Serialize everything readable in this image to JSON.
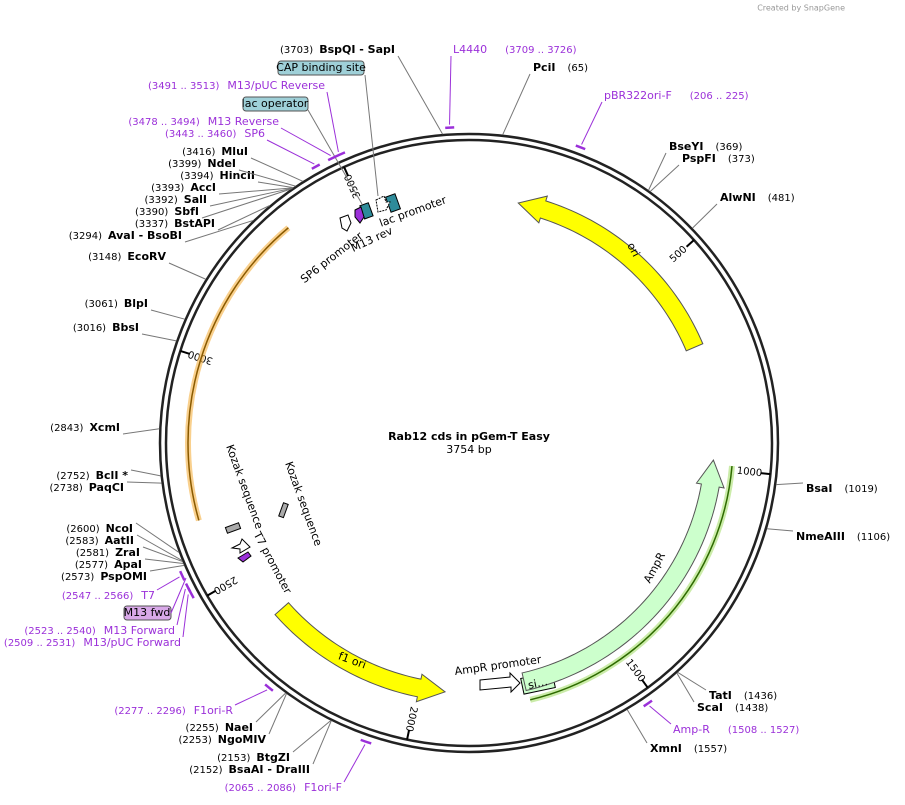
{
  "header": {
    "credit": "Created by SnapGene"
  },
  "map": {
    "name": "Rab12 cds in pGem-T Easy",
    "size": "3754 bp"
  },
  "ticks": [
    "500",
    "1000",
    "1500",
    "2000",
    "2500",
    "3000",
    "3500"
  ],
  "enzymes": [
    {
      "name": "PciI",
      "site": "(65)"
    },
    {
      "name": "BseYI",
      "site": "(369)"
    },
    {
      "name": "PspFI",
      "site": "(373)"
    },
    {
      "name": "AlwNI",
      "site": "(481)"
    },
    {
      "name": "BsaI",
      "site": "(1019)"
    },
    {
      "name": "NmeAIII",
      "site": "(1106)"
    },
    {
      "name": "TatI",
      "site": "(1436)"
    },
    {
      "name": "ScaI",
      "site": "(1438)"
    },
    {
      "name": "XmnI",
      "site": "(1557)"
    },
    {
      "name": "BsaAI - DraIII",
      "site": "(2152)"
    },
    {
      "name": "BtgZI",
      "site": "(2153)"
    },
    {
      "name": "NgoMIV",
      "site": "(2253)"
    },
    {
      "name": "NaeI",
      "site": "(2255)"
    },
    {
      "name": "PspOMI",
      "site": "(2573)"
    },
    {
      "name": "ApaI",
      "site": "(2577)"
    },
    {
      "name": "ZraI",
      "site": "(2581)"
    },
    {
      "name": "AatII",
      "site": "(2583)"
    },
    {
      "name": "NcoI",
      "site": "(2600)"
    },
    {
      "name": "PaqCI",
      "site": "(2738)"
    },
    {
      "name": "BclI *",
      "site": "(2752)"
    },
    {
      "name": "XcmI",
      "site": "(2843)"
    },
    {
      "name": "BbsI",
      "site": "(3016)"
    },
    {
      "name": "BlpI",
      "site": "(3061)"
    },
    {
      "name": "EcoRV",
      "site": "(3148)"
    },
    {
      "name": "AvaI - BsoBI",
      "site": "(3294)"
    },
    {
      "name": "BstAPI",
      "site": "(3337)"
    },
    {
      "name": "SbfI",
      "site": "(3390)"
    },
    {
      "name": "SalI",
      "site": "(3392)"
    },
    {
      "name": "AccI",
      "site": "(3393)"
    },
    {
      "name": "HincII",
      "site": "(3394)"
    },
    {
      "name": "NdeI",
      "site": "(3399)"
    },
    {
      "name": "MluI",
      "site": "(3416)"
    },
    {
      "name": "BspQI - SapI",
      "site": "(3703)"
    }
  ],
  "primers": [
    {
      "name": "L4440",
      "range": "(3709 .. 3726)"
    },
    {
      "name": "pBR322ori-F",
      "range": "(206 .. 225)"
    },
    {
      "name": "Amp-R",
      "range": "(1508 .. 1527)"
    },
    {
      "name": "F1ori-F",
      "range": "(2065 .. 2086)"
    },
    {
      "name": "F1ori-R",
      "range": "(2277 .. 2296)"
    },
    {
      "name": "M13/pUC Forward",
      "range": "(2509 .. 2531)"
    },
    {
      "name": "M13 Forward",
      "range": "(2523 .. 2540)"
    },
    {
      "name": "T7",
      "range": "(2547 .. 2566)"
    },
    {
      "name": "SP6",
      "range": "(3443 .. 3460)"
    },
    {
      "name": "M13 Reverse",
      "range": "(3478 .. 3494)"
    },
    {
      "name": "M13/pUC Reverse",
      "range": "(3491 .. 3513)"
    }
  ],
  "boxed_features": [
    {
      "label": "M13 fwd"
    },
    {
      "label": "CAP binding site"
    },
    {
      "label": "lac operator"
    }
  ],
  "features": [
    {
      "label": "ori"
    },
    {
      "label": "AmpR"
    },
    {
      "label": "f1 ori"
    },
    {
      "label": "AmpR promoter"
    },
    {
      "label": "lac promoter"
    },
    {
      "label": "M13 rev"
    },
    {
      "label": "SP6 promoter"
    },
    {
      "label": "T7 promoter"
    },
    {
      "label": "Kozak sequence"
    },
    {
      "label": "Kozak sequence"
    },
    {
      "label": "si…"
    }
  ]
}
